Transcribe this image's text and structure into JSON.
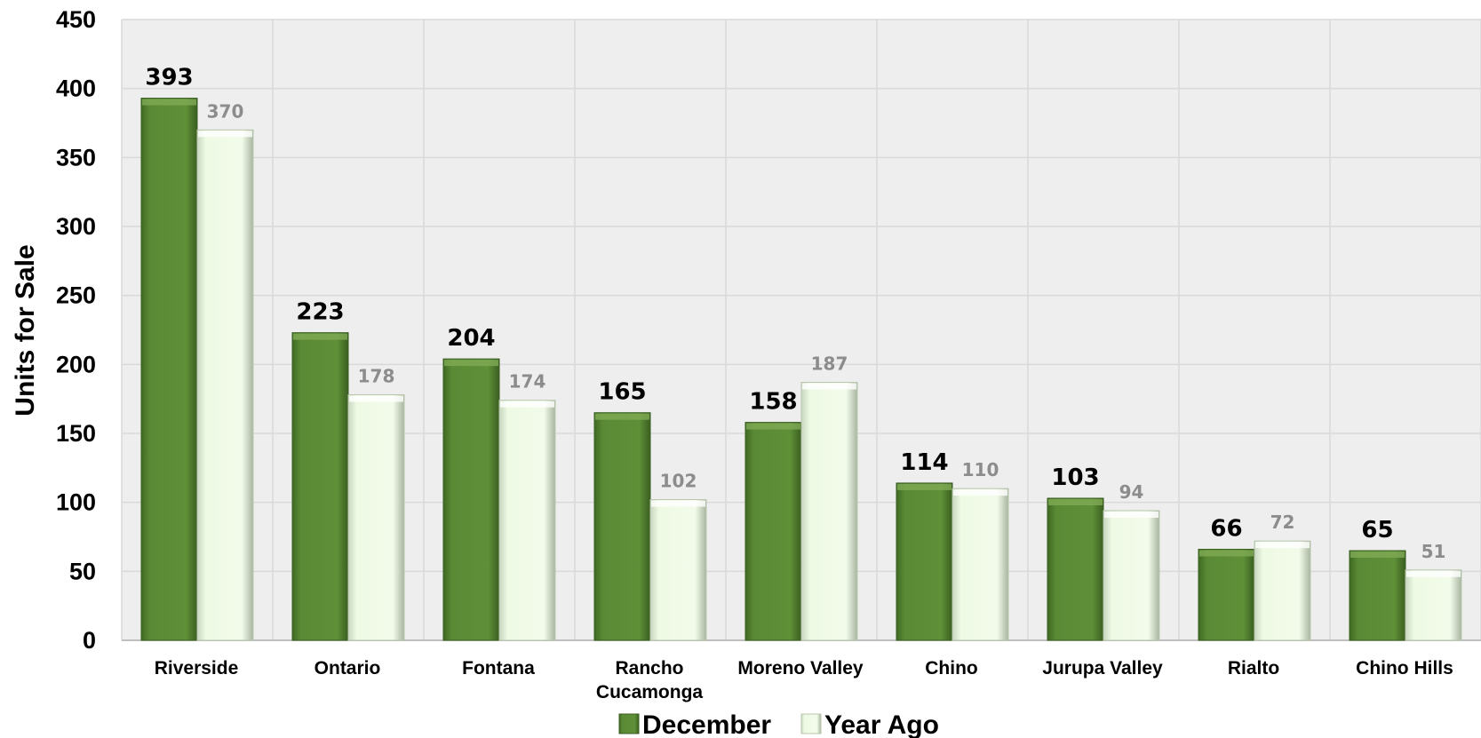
{
  "chart_data": {
    "type": "bar",
    "categories": [
      "Riverside",
      "Ontario",
      "Fontana",
      "Rancho Cucamonga",
      "Moreno Valley",
      "Chino",
      "Jurupa Valley",
      "Rialto",
      "Chino Hills"
    ],
    "category_lines": [
      [
        "Riverside"
      ],
      [
        "Ontario"
      ],
      [
        "Fontana"
      ],
      [
        "Rancho",
        "Cucamonga"
      ],
      [
        "Moreno Valley"
      ],
      [
        "Chino"
      ],
      [
        "Jurupa Valley"
      ],
      [
        "Rialto"
      ],
      [
        "Chino Hills"
      ]
    ],
    "series": [
      {
        "name": "December",
        "values": [
          393,
          223,
          204,
          165,
          158,
          114,
          103,
          66,
          65
        ],
        "color": "#5a8a35"
      },
      {
        "name": "Year Ago",
        "values": [
          370,
          178,
          174,
          102,
          187,
          110,
          94,
          72,
          51
        ],
        "color": "#eefae4"
      }
    ],
    "ylabel": "Units for Sale",
    "ylim": [
      0,
      450
    ],
    "yticks": [
      0,
      50,
      100,
      150,
      200,
      250,
      300,
      350,
      400,
      450
    ],
    "grid": true,
    "legend": "bottom-center"
  }
}
